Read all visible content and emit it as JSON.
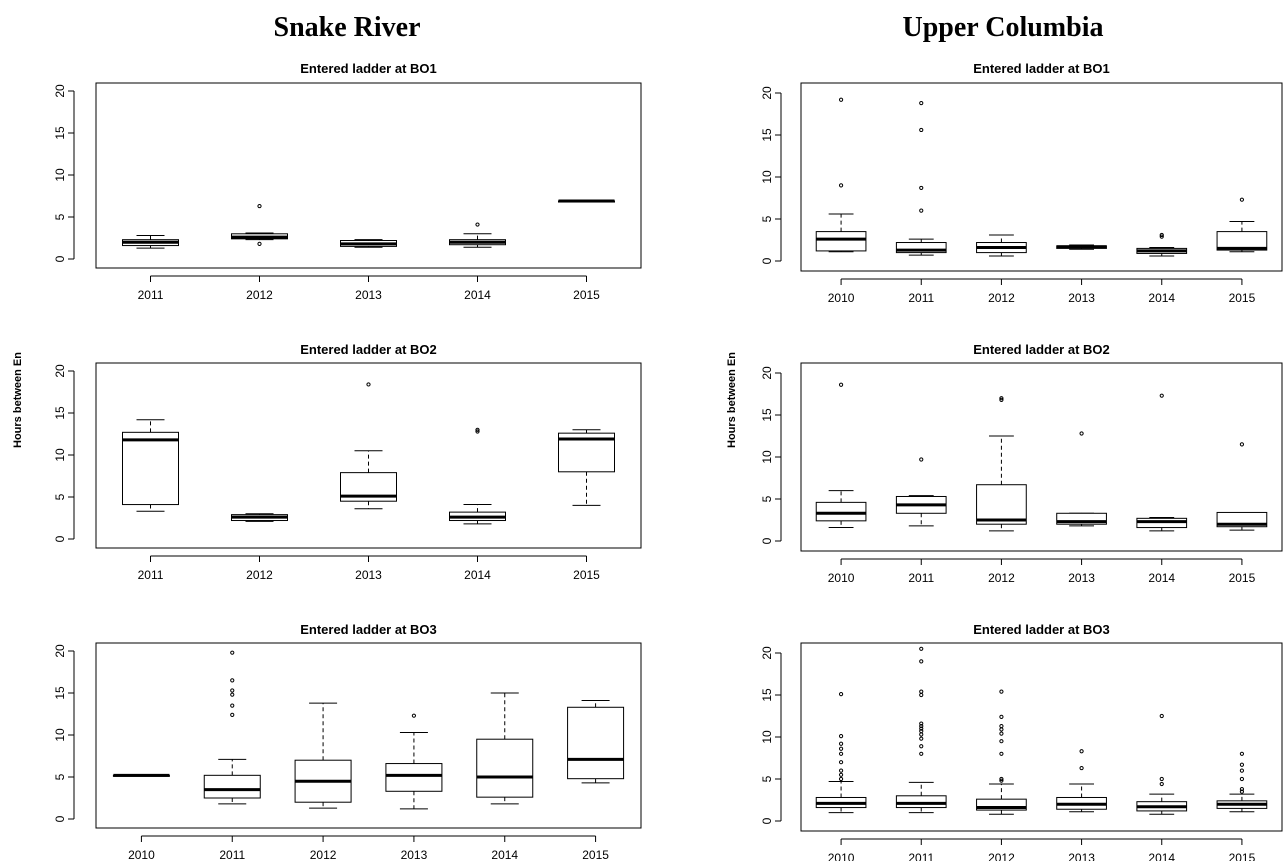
{
  "figure": {
    "left_title": "Snake River",
    "right_title": "Upper Columbia",
    "ylabel": "Hours between En"
  },
  "chart_data": [
    {
      "type": "box",
      "group": "Snake River",
      "title": "Entered ladder at BO1",
      "ylim": [
        0,
        20
      ],
      "yticks": [
        0,
        5,
        10,
        15,
        20
      ],
      "categories": [
        "2011",
        "2012",
        "2013",
        "2014",
        "2015"
      ],
      "boxes": [
        {
          "min": 1.3,
          "q1": 1.6,
          "median": 2.0,
          "q3": 2.3,
          "max": 2.8,
          "outliers": []
        },
        {
          "min": 2.3,
          "q1": 2.4,
          "median": 2.6,
          "q3": 3.0,
          "max": 3.1,
          "outliers": [
            1.8,
            6.3
          ]
        },
        {
          "min": 1.4,
          "q1": 1.5,
          "median": 1.8,
          "q3": 2.2,
          "max": 2.3,
          "outliers": []
        },
        {
          "min": 1.4,
          "q1": 1.7,
          "median": 2.0,
          "q3": 2.3,
          "max": 3.0,
          "outliers": [
            4.1
          ]
        },
        {
          "min": 6.9,
          "q1": 6.9,
          "median": 6.9,
          "q3": 6.9,
          "max": 6.9,
          "outliers": []
        }
      ]
    },
    {
      "type": "box",
      "group": "Snake River",
      "title": "Entered ladder at BO2",
      "ylim": [
        0,
        20
      ],
      "yticks": [
        0,
        5,
        10,
        15,
        20
      ],
      "categories": [
        "2011",
        "2012",
        "2013",
        "2014",
        "2015"
      ],
      "boxes": [
        {
          "min": 3.3,
          "q1": 4.1,
          "median": 11.8,
          "q3": 12.7,
          "max": 14.2,
          "outliers": []
        },
        {
          "min": 2.1,
          "q1": 2.2,
          "median": 2.6,
          "q3": 2.9,
          "max": 3.0,
          "outliers": []
        },
        {
          "min": 3.6,
          "q1": 4.5,
          "median": 5.1,
          "q3": 7.9,
          "max": 10.5,
          "outliers": [
            18.4
          ]
        },
        {
          "min": 1.8,
          "q1": 2.2,
          "median": 2.6,
          "q3": 3.2,
          "max": 4.1,
          "outliers": [
            12.8,
            13.0
          ]
        },
        {
          "min": 4.0,
          "q1": 8.0,
          "median": 11.9,
          "q3": 12.6,
          "max": 13.0,
          "outliers": []
        }
      ]
    },
    {
      "type": "box",
      "group": "Snake River",
      "title": "Entered ladder at BO3",
      "ylim": [
        0,
        20
      ],
      "yticks": [
        0,
        5,
        10,
        15,
        20
      ],
      "categories": [
        "2010",
        "2011",
        "2012",
        "2013",
        "2014",
        "2015"
      ],
      "boxes": [
        {
          "min": 5.2,
          "q1": 5.2,
          "median": 5.2,
          "q3": 5.2,
          "max": 5.2,
          "outliers": []
        },
        {
          "min": 1.8,
          "q1": 2.5,
          "median": 3.5,
          "q3": 5.2,
          "max": 7.1,
          "outliers": [
            12.4,
            13.5,
            14.8,
            15.3,
            16.5,
            19.8
          ]
        },
        {
          "min": 1.3,
          "q1": 2.0,
          "median": 4.5,
          "q3": 7.0,
          "max": 13.8,
          "outliers": []
        },
        {
          "min": 1.2,
          "q1": 3.3,
          "median": 5.2,
          "q3": 6.6,
          "max": 10.3,
          "outliers": [
            12.3
          ]
        },
        {
          "min": 1.8,
          "q1": 2.6,
          "median": 5.0,
          "q3": 9.5,
          "max": 15.0,
          "outliers": []
        },
        {
          "min": 4.3,
          "q1": 4.8,
          "median": 7.1,
          "q3": 13.3,
          "max": 14.1,
          "outliers": []
        }
      ]
    },
    {
      "type": "box",
      "group": "Upper Columbia",
      "title": "Entered ladder at BO1",
      "ylim": [
        0,
        20
      ],
      "yticks": [
        0,
        5,
        10,
        15,
        20
      ],
      "categories": [
        "2010",
        "2011",
        "2012",
        "2013",
        "2014",
        "2015"
      ],
      "boxes": [
        {
          "min": 1.1,
          "q1": 1.2,
          "median": 2.6,
          "q3": 3.5,
          "max": 5.6,
          "outliers": [
            9.0,
            19.2
          ]
        },
        {
          "min": 0.7,
          "q1": 1.0,
          "median": 1.3,
          "q3": 2.2,
          "max": 2.6,
          "outliers": [
            6.0,
            8.7,
            15.6,
            18.8
          ]
        },
        {
          "min": 0.6,
          "q1": 1.0,
          "median": 1.6,
          "q3": 2.2,
          "max": 3.1,
          "outliers": []
        },
        {
          "min": 1.4,
          "q1": 1.5,
          "median": 1.7,
          "q3": 1.8,
          "max": 1.9,
          "outliers": []
        },
        {
          "min": 0.6,
          "q1": 0.9,
          "median": 1.2,
          "q3": 1.5,
          "max": 1.6,
          "outliers": [
            2.9,
            3.1
          ]
        },
        {
          "min": 1.1,
          "q1": 1.3,
          "median": 1.5,
          "q3": 3.5,
          "max": 4.7,
          "outliers": [
            7.3
          ]
        }
      ]
    },
    {
      "type": "box",
      "group": "Upper Columbia",
      "title": "Entered ladder at BO2",
      "ylim": [
        0,
        20
      ],
      "yticks": [
        0,
        5,
        10,
        15,
        20
      ],
      "categories": [
        "2010",
        "2011",
        "2012",
        "2013",
        "2014",
        "2015"
      ],
      "boxes": [
        {
          "min": 1.6,
          "q1": 2.4,
          "median": 3.3,
          "q3": 4.6,
          "max": 6.0,
          "outliers": [
            18.6
          ]
        },
        {
          "min": 1.8,
          "q1": 3.3,
          "median": 4.3,
          "q3": 5.3,
          "max": 5.4,
          "outliers": [
            9.7
          ]
        },
        {
          "min": 1.2,
          "q1": 2.0,
          "median": 2.5,
          "q3": 6.7,
          "max": 12.5,
          "outliers": [
            16.8,
            17.0
          ]
        },
        {
          "min": 1.8,
          "q1": 2.0,
          "median": 2.3,
          "q3": 3.3,
          "max": 3.3,
          "outliers": [
            12.8
          ]
        },
        {
          "min": 1.2,
          "q1": 1.6,
          "median": 2.3,
          "q3": 2.7,
          "max": 2.8,
          "outliers": [
            17.3
          ]
        },
        {
          "min": 1.3,
          "q1": 1.7,
          "median": 2.0,
          "q3": 3.4,
          "max": 3.4,
          "outliers": [
            11.5
          ]
        }
      ]
    },
    {
      "type": "box",
      "group": "Upper Columbia",
      "title": "Entered ladder at BO3",
      "ylim": [
        0,
        20
      ],
      "yticks": [
        0,
        5,
        10,
        15,
        20
      ],
      "categories": [
        "2010",
        "2011",
        "2012",
        "2013",
        "2014",
        "2015"
      ],
      "boxes": [
        {
          "min": 1.0,
          "q1": 1.6,
          "median": 2.1,
          "q3": 2.8,
          "max": 4.7,
          "outliers": [
            5.0,
            5.5,
            6.0,
            7.0,
            8.0,
            8.6,
            9.2,
            10.1,
            15.1
          ]
        },
        {
          "min": 1.0,
          "q1": 1.6,
          "median": 2.1,
          "q3": 3.0,
          "max": 4.6,
          "outliers": [
            8.0,
            8.9,
            9.8,
            10.3,
            10.7,
            11.0,
            11.3,
            11.6,
            15.0,
            15.4,
            19.0,
            20.5
          ]
        },
        {
          "min": 0.8,
          "q1": 1.3,
          "median": 1.6,
          "q3": 2.6,
          "max": 4.4,
          "outliers": [
            4.8,
            5.0,
            8.0,
            9.5,
            10.4,
            10.9,
            11.3,
            12.4,
            15.4
          ]
        },
        {
          "min": 1.1,
          "q1": 1.4,
          "median": 2.0,
          "q3": 2.8,
          "max": 4.4,
          "outliers": [
            6.3,
            8.3
          ]
        },
        {
          "min": 0.8,
          "q1": 1.2,
          "median": 1.7,
          "q3": 2.3,
          "max": 3.2,
          "outliers": [
            4.4,
            5.0,
            12.5
          ]
        },
        {
          "min": 1.1,
          "q1": 1.5,
          "median": 2.0,
          "q3": 2.4,
          "max": 3.2,
          "outliers": [
            3.5,
            3.8,
            5.0,
            6.0,
            6.7,
            8.0
          ]
        }
      ]
    }
  ]
}
